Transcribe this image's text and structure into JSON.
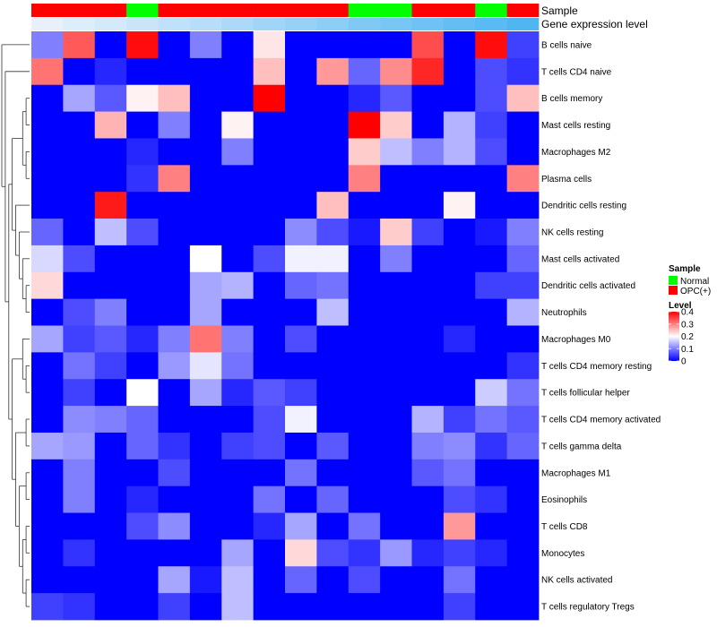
{
  "chart_data": {
    "type": "heatmap",
    "annotation_labels": {
      "sample": "Sample",
      "gene_expression": "Gene expression level"
    },
    "columns": 16,
    "sample_groups": [
      "OPC(+)",
      "OPC(+)",
      "OPC(+)",
      "Normal",
      "OPC(+)",
      "OPC(+)",
      "OPC(+)",
      "OPC(+)",
      "OPC(+)",
      "OPC(+)",
      "Normal",
      "Normal",
      "OPC(+)",
      "OPC(+)",
      "Normal",
      "OPC(+)"
    ],
    "gene_expression_levels": [
      0.0,
      0.07,
      0.13,
      0.2,
      0.27,
      0.33,
      0.4,
      0.47,
      0.53,
      0.6,
      0.67,
      0.73,
      0.8,
      0.87,
      0.93,
      1.0
    ],
    "rows": [
      "B cells naive",
      "T cells CD4 naive",
      "B cells memory",
      "Mast cells resting",
      "Macrophages M2",
      "Plasma cells",
      "Dendritic cells resting",
      "NK cells resting",
      "Mast cells activated",
      "Dendritic cells activated",
      "Neutrophils",
      "Macrophages M0",
      "T cells CD4 memory resting",
      "T cells follicular helper",
      "T cells CD4 memory activated",
      "T cells gamma delta",
      "Macrophages M1",
      "Eosinophils",
      "T cells CD8",
      "Monocytes",
      "NK cells activated",
      "T cells regulatory  Tregs"
    ],
    "values": [
      [
        0.1,
        0.33,
        0.0,
        0.39,
        0.0,
        0.1,
        0.0,
        0.22,
        0.0,
        0.0,
        0.0,
        0.0,
        0.34,
        0.0,
        0.39,
        0.05
      ],
      [
        0.31,
        0.0,
        0.03,
        0.0,
        0.0,
        0.0,
        0.0,
        0.25,
        0.0,
        0.28,
        0.08,
        0.29,
        0.37,
        0.0,
        0.06,
        0.04
      ],
      [
        0.0,
        0.13,
        0.07,
        0.21,
        0.25,
        0.0,
        0.0,
        0.4,
        0.0,
        0.0,
        0.03,
        0.07,
        0.0,
        0.0,
        0.06,
        0.25
      ],
      [
        0.0,
        0.0,
        0.26,
        0.0,
        0.1,
        0.0,
        0.21,
        0.0,
        0.0,
        0.0,
        0.4,
        0.24,
        0.0,
        0.14,
        0.05,
        0.0
      ],
      [
        0.0,
        0.0,
        0.0,
        0.03,
        0.0,
        0.0,
        0.1,
        0.0,
        0.0,
        0.0,
        0.24,
        0.15,
        0.1,
        0.14,
        0.06,
        0.0
      ],
      [
        0.0,
        0.0,
        0.0,
        0.04,
        0.3,
        0.0,
        0.0,
        0.0,
        0.0,
        0.0,
        0.3,
        0.0,
        0.0,
        0.0,
        0.0,
        0.3
      ],
      [
        0.0,
        0.0,
        0.38,
        0.0,
        0.0,
        0.0,
        0.0,
        0.0,
        0.0,
        0.25,
        0.0,
        0.0,
        0.0,
        0.21,
        0.0,
        0.0
      ],
      [
        0.08,
        0.0,
        0.15,
        0.06,
        0.0,
        0.0,
        0.0,
        0.0,
        0.11,
        0.06,
        0.02,
        0.24,
        0.05,
        0.0,
        0.02,
        0.1
      ],
      [
        0.17,
        0.06,
        0.0,
        0.0,
        0.0,
        0.2,
        0.0,
        0.06,
        0.19,
        0.19,
        0.0,
        0.1,
        0.0,
        0.0,
        0.0,
        0.08
      ],
      [
        0.23,
        0.0,
        0.0,
        0.0,
        0.0,
        0.13,
        0.14,
        0.0,
        0.08,
        0.09,
        0.0,
        0.0,
        0.0,
        0.0,
        0.05,
        0.05
      ],
      [
        0.0,
        0.06,
        0.1,
        0.0,
        0.0,
        0.13,
        0.0,
        0.0,
        0.0,
        0.15,
        0.0,
        0.0,
        0.0,
        0.0,
        0.0,
        0.14
      ],
      [
        0.13,
        0.05,
        0.07,
        0.03,
        0.1,
        0.31,
        0.1,
        0.0,
        0.06,
        0.0,
        0.0,
        0.0,
        0.0,
        0.03,
        0.0,
        0.0
      ],
      [
        0.0,
        0.09,
        0.05,
        0.0,
        0.12,
        0.18,
        0.09,
        0.0,
        0.0,
        0.0,
        0.0,
        0.0,
        0.0,
        0.0,
        0.0,
        0.04
      ],
      [
        0.0,
        0.05,
        0.0,
        0.2,
        0.0,
        0.13,
        0.03,
        0.07,
        0.05,
        0.0,
        0.0,
        0.0,
        0.0,
        0.0,
        0.16,
        0.09
      ],
      [
        0.0,
        0.11,
        0.1,
        0.08,
        0.0,
        0.0,
        0.0,
        0.06,
        0.19,
        0.0,
        0.0,
        0.0,
        0.14,
        0.05,
        0.09,
        0.07
      ],
      [
        0.13,
        0.12,
        0.0,
        0.08,
        0.04,
        0.0,
        0.05,
        0.06,
        0.0,
        0.07,
        0.0,
        0.0,
        0.1,
        0.11,
        0.04,
        0.08
      ],
      [
        0.0,
        0.1,
        0.0,
        0.0,
        0.06,
        0.0,
        0.0,
        0.0,
        0.09,
        0.0,
        0.0,
        0.0,
        0.07,
        0.09,
        0.0,
        0.0
      ],
      [
        0.0,
        0.1,
        0.0,
        0.03,
        0.0,
        0.0,
        0.0,
        0.09,
        0.0,
        0.08,
        0.0,
        0.0,
        0.0,
        0.06,
        0.04,
        0.0
      ],
      [
        0.0,
        0.0,
        0.0,
        0.06,
        0.11,
        0.0,
        0.0,
        0.03,
        0.13,
        0.0,
        0.09,
        0.0,
        0.0,
        0.28,
        0.0,
        0.0
      ],
      [
        0.0,
        0.04,
        0.0,
        0.0,
        0.0,
        0.0,
        0.13,
        0.0,
        0.23,
        0.06,
        0.04,
        0.12,
        0.03,
        0.05,
        0.03,
        0.0
      ],
      [
        0.0,
        0.0,
        0.0,
        0.0,
        0.13,
        0.02,
        0.15,
        0.0,
        0.08,
        0.0,
        0.06,
        0.0,
        0.0,
        0.09,
        0.0,
        0.0
      ],
      [
        0.05,
        0.04,
        0.0,
        0.0,
        0.05,
        0.0,
        0.15,
        0.0,
        0.0,
        0.0,
        0.0,
        0.0,
        0.0,
        0.05,
        0.0,
        0.0
      ]
    ],
    "color_scale": {
      "min": 0,
      "mid": 0.2,
      "max": 0.4,
      "low_color": "#0000ff",
      "mid_color": "#ffffff",
      "high_color": "#ff0000"
    },
    "legend": {
      "sample_title": "Sample",
      "sample_entries": [
        {
          "label": "Normal",
          "color": "#00ff00"
        },
        {
          "label": "OPC(+)",
          "color": "#ff0000"
        }
      ],
      "level_title": "Level",
      "level_ticks": [
        "0.4",
        "0.3",
        "0.2",
        "0.1",
        "0"
      ]
    },
    "gene_expression_colors": {
      "low": "#e8f1fb",
      "high": "#4fb6f2"
    }
  }
}
